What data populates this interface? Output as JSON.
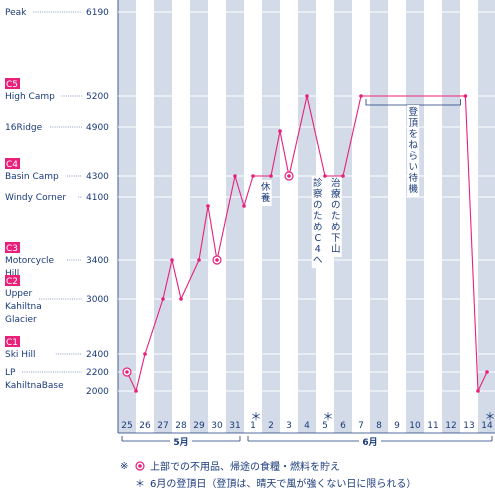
{
  "chart_data": {
    "type": "line",
    "altitudes": [
      {
        "name": "Peak",
        "alt": 6190,
        "camp": ""
      },
      {
        "name": "High Camp",
        "alt": 5200,
        "camp": "C5"
      },
      {
        "name": "16Ridge",
        "alt": 4900,
        "camp": ""
      },
      {
        "name": "Basin Camp",
        "alt": 4300,
        "camp": "C4"
      },
      {
        "name": "Windy Corner",
        "alt": 4100,
        "camp": ""
      },
      {
        "name": "Motorcycle Hill",
        "alt": 3400,
        "camp": "C3",
        "lines": [
          "Motorcycle",
          "Hill"
        ]
      },
      {
        "name": "Upper Kahiltna Glacier",
        "alt": 3000,
        "camp": "C2",
        "lines": [
          "Upper",
          "Kahiltna",
          "Glacier"
        ]
      },
      {
        "name": "Ski Hill",
        "alt": 2400,
        "camp": "C1"
      },
      {
        "name": "LP KahiltnaBase",
        "alt": 2200,
        "camp": "",
        "lines": [
          "LP",
          "KahiltnaBase"
        ]
      },
      {
        "name": "",
        "alt": 2000,
        "camp": ""
      }
    ],
    "days": [
      "25",
      "26",
      "27",
      "28",
      "29",
      "30",
      "31",
      "1",
      "2",
      "3",
      "4",
      "5",
      "6",
      "7",
      "8",
      "9",
      "10",
      "11",
      "12",
      "13",
      "14"
    ],
    "months": [
      {
        "label": "5月",
        "from": 0,
        "to": 7
      },
      {
        "label": "6月",
        "from": 7,
        "to": 21
      }
    ],
    "summit_attempt_days": [
      "1",
      "5",
      "14"
    ],
    "series": [
      {
        "values": [
          {
            "x": 0,
            "y": 2200,
            "marker": true
          },
          {
            "x": 0.5,
            "y": 2000
          },
          {
            "x": 1,
            "y": 2400
          },
          {
            "x": 2,
            "y": 3000
          },
          {
            "x": 2.5,
            "y": 3400
          },
          {
            "x": 3,
            "y": 3000
          },
          {
            "x": 4,
            "y": 3400
          },
          {
            "x": 4.5,
            "y": 4000
          },
          {
            "x": 5,
            "y": 3400,
            "marker": true
          },
          {
            "x": 6,
            "y": 4300
          },
          {
            "x": 6.5,
            "y": 4000
          },
          {
            "x": 7,
            "y": 4300
          },
          {
            "x": 8,
            "y": 4300
          },
          {
            "x": 8.5,
            "y": 4850
          },
          {
            "x": 9,
            "y": 4300,
            "marker": true
          },
          {
            "x": 10,
            "y": 5200
          },
          {
            "x": 11,
            "y": 4300
          },
          {
            "x": 12,
            "y": 4300
          },
          {
            "x": 13,
            "y": 5200
          },
          {
            "x": 18.8,
            "y": 5200
          },
          {
            "x": 19.5,
            "y": 2000
          },
          {
            "x": 20,
            "y": 2200
          }
        ]
      }
    ],
    "annotations": [
      {
        "text": "休養",
        "day_index": 7.7
      },
      {
        "text": "診察のためC4へ",
        "day_index": 10.6
      },
      {
        "text": "治療のため下山",
        "day_index": 11.6
      },
      {
        "text": "登頂をねらい待機",
        "day_index": 15.9
      }
    ],
    "legend": [
      {
        "symbol": "◎",
        "text": "上部での不用品、帰途の食糧・燃料を貯え"
      },
      {
        "symbol": "＊",
        "text": "6月の登頂日（登頂は、晴天で風が強くない日に限られる）"
      }
    ],
    "legend_mark": "※",
    "colors": {
      "line": "#e8207a",
      "stripe": "#d3dbe8",
      "axis": "#1a3a7a",
      "camp_box": "#e8207a"
    }
  }
}
